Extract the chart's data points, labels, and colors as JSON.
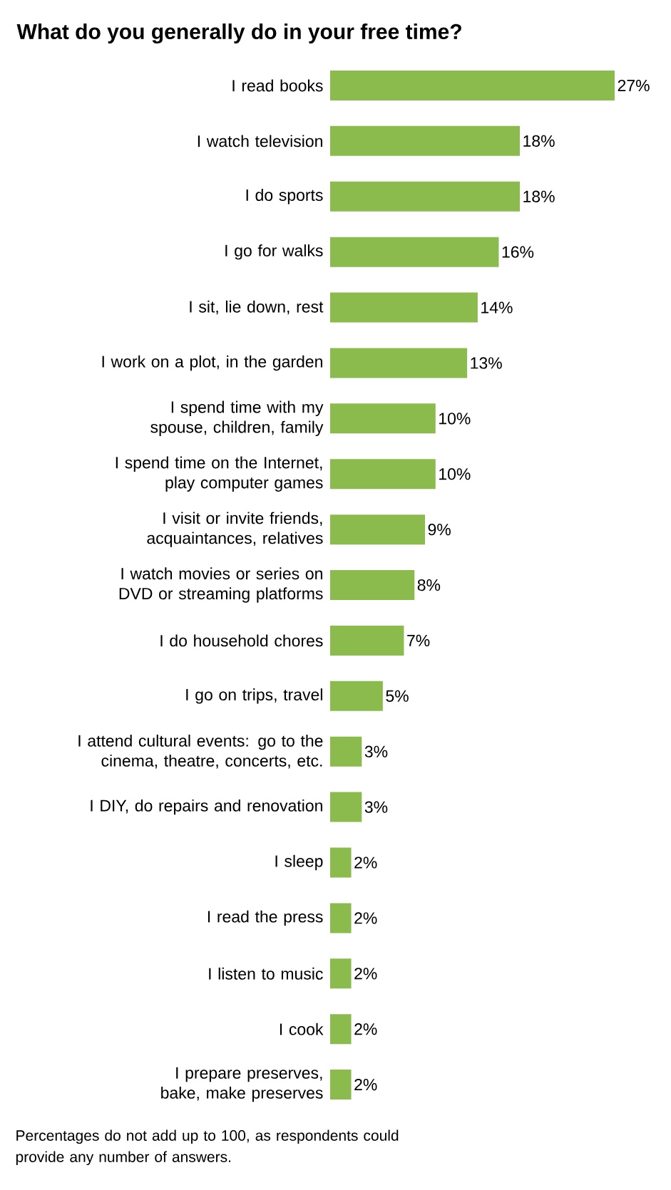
{
  "chart_data": {
    "type": "bar",
    "orientation": "horizontal",
    "title": "What do you generally do in your free time?",
    "categories": [
      "I read books",
      "I watch television",
      "I do sports",
      "I go for walks",
      "I sit, lie down, rest",
      "I work on a plot, in the garden",
      "I spend time with my spouse, children, family",
      "I spend time on the Internet, play computer games",
      "I visit or invite friends, acquaintances, relatives",
      "I watch movies or series on DVD or streaming platforms",
      "I do household chores",
      "I go on trips, travel",
      "I attend cultural events: go to the cinema, theatre, concerts, etc.",
      "I DIY, do repairs and renovation",
      "I sleep",
      "I read the press",
      "I listen to music",
      "I cook",
      "I prepare preserves, bake, make preserves"
    ],
    "values": [
      27,
      18,
      18,
      16,
      14,
      13,
      10,
      10,
      9,
      8,
      7,
      5,
      3,
      3,
      2,
      2,
      2,
      2,
      2
    ],
    "value_labels": [
      "27%",
      "18%",
      "18%",
      "16%",
      "14%",
      "13%",
      "10%",
      "10%",
      "9%",
      "8%",
      "7%",
      "5%",
      "3%",
      "3%",
      "2%",
      "2%",
      "2%",
      "2%",
      "2%"
    ],
    "color": "#8bbb4c",
    "annotations": [
      "Percentages do not add up to 100, as respondents could provide any number of answers."
    ]
  }
}
